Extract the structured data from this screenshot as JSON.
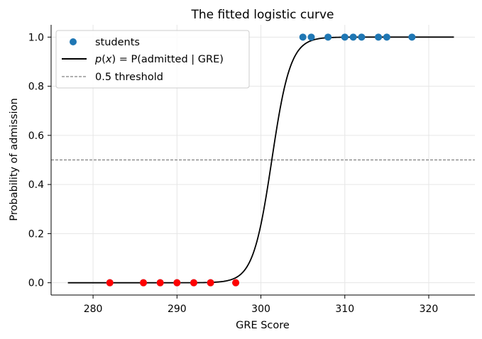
{
  "chart_data": {
    "type": "scatter",
    "title": "The fitted logistic curve",
    "xlabel": "GRE Score",
    "ylabel": "Probability of admission",
    "xlim": [
      275,
      325.5
    ],
    "ylim": [
      -0.05,
      1.05
    ],
    "xticks": [
      280,
      290,
      300,
      310,
      320
    ],
    "yticks": [
      0.0,
      0.2,
      0.4,
      0.6,
      0.8,
      1.0
    ],
    "xtick_labels": [
      "280",
      "290",
      "300",
      "310",
      "320"
    ],
    "ytick_labels": [
      "0.0",
      "0.2",
      "0.4",
      "0.6",
      "0.8",
      "1.0"
    ],
    "grid": true,
    "legend_position": "top-left",
    "series": [
      {
        "name": "students",
        "kind": "scatter",
        "color": "#1f77b4",
        "points": [
          {
            "x": 282,
            "y": 0
          },
          {
            "x": 286,
            "y": 0
          },
          {
            "x": 288,
            "y": 0
          },
          {
            "x": 290,
            "y": 0
          },
          {
            "x": 292,
            "y": 0
          },
          {
            "x": 294,
            "y": 0
          },
          {
            "x": 297,
            "y": 0
          },
          {
            "x": 305,
            "y": 1
          },
          {
            "x": 306,
            "y": 1
          },
          {
            "x": 308,
            "y": 1
          },
          {
            "x": 310,
            "y": 1
          },
          {
            "x": 311,
            "y": 1
          },
          {
            "x": 312,
            "y": 1
          },
          {
            "x": 314,
            "y": 1
          },
          {
            "x": 315,
            "y": 1
          },
          {
            "x": 318,
            "y": 1
          }
        ]
      },
      {
        "name": "p(x) = P(admitted | GRE)",
        "kind": "line",
        "color": "#000000",
        "logistic": {
          "midpoint": 301.3,
          "slope": 0.9
        },
        "x_range": [
          277,
          323
        ]
      },
      {
        "name": "0.5 threshold",
        "kind": "hline",
        "color": "#808080",
        "y": 0.5
      }
    ],
    "highlight": {
      "color": "#ff0000",
      "points": [
        {
          "x": 282,
          "y": 0
        },
        {
          "x": 286,
          "y": 0
        },
        {
          "x": 288,
          "y": 0
        },
        {
          "x": 290,
          "y": 0
        },
        {
          "x": 292,
          "y": 0
        },
        {
          "x": 294,
          "y": 0
        },
        {
          "x": 297,
          "y": 0
        }
      ]
    }
  }
}
